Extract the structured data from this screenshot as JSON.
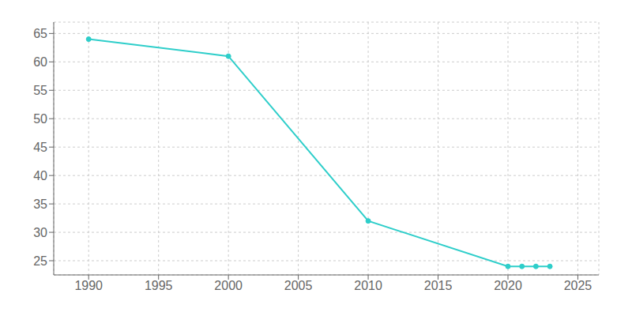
{
  "chart_data": {
    "type": "line",
    "x": [
      1990,
      2000,
      2010,
      2020,
      2021,
      2022,
      2023
    ],
    "values": [
      64,
      61,
      32,
      24,
      24,
      24,
      24
    ],
    "color": "#2ECECA",
    "marker": "circle",
    "xlim": [
      1987.5,
      2026.5
    ],
    "ylim": [
      22.5,
      67.0
    ],
    "xticks": [
      1990,
      1995,
      2000,
      2005,
      2010,
      2015,
      2020,
      2025
    ],
    "yticks": [
      25,
      30,
      35,
      40,
      45,
      50,
      55,
      60,
      65
    ],
    "grid": true
  }
}
